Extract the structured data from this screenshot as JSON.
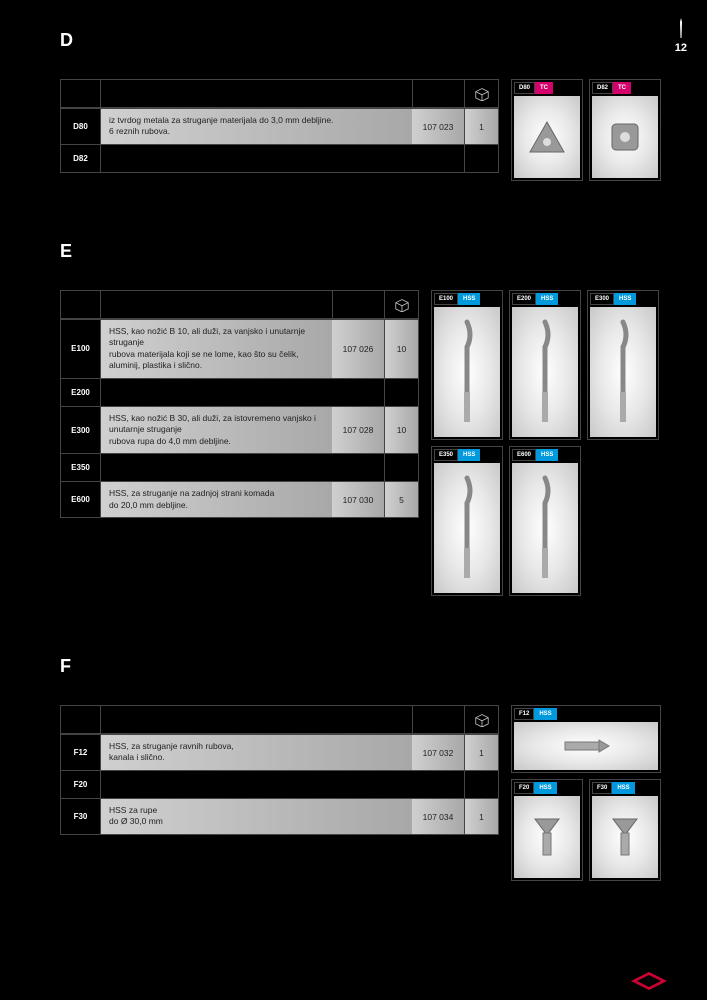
{
  "page_number": "12",
  "sections": [
    {
      "id": "D",
      "title": "D",
      "table": {
        "rows": [
          {
            "model": "D80",
            "desc": "iz tvrdog metala za struganje materijala do 3,0 mm debljine.\n6 reznih rubova.",
            "code": "107 023",
            "pack": "1",
            "style": "light"
          },
          {
            "model": "D82",
            "desc": "",
            "code": "",
            "pack": "",
            "style": "dark"
          }
        ]
      },
      "images": [
        {
          "model": "D80",
          "material": "TC",
          "mat_class": "tag-tc",
          "shape": "triangle"
        },
        {
          "model": "D82",
          "material": "TC",
          "mat_class": "tag-tc",
          "shape": "square"
        }
      ],
      "img_height": "normal"
    },
    {
      "id": "E",
      "title": "E",
      "table": {
        "rows": [
          {
            "model": "E100",
            "desc": "HSS, kao nožić B 10, ali duži, za vanjsko i unutarnje struganje\nrubova materijala koji se ne lome, kao što su čelik, aluminij, plastika i slično.",
            "code": "107 026",
            "pack": "10",
            "style": "light"
          },
          {
            "model": "E200",
            "desc": "",
            "code": "",
            "pack": "",
            "style": "dark"
          },
          {
            "model": "E300",
            "desc": "HSS, kao nožić B 30, ali duži, za istovremeno vanjsko i unutarnje struganje\nrubova rupa do 4,0 mm debljine.",
            "code": "107 028",
            "pack": "10",
            "style": "light"
          },
          {
            "model": "E350",
            "desc": "",
            "code": "",
            "pack": "",
            "style": "dark"
          },
          {
            "model": "E600",
            "desc": "HSS, za struganje na zadnjoj strani komada\ndo 20,0 mm debljine.",
            "code": "107 030",
            "pack": "5",
            "style": "light"
          }
        ]
      },
      "images": [
        {
          "model": "E100",
          "material": "HSS",
          "mat_class": "tag-hss",
          "shape": "blade"
        },
        {
          "model": "E200",
          "material": "HSS",
          "mat_class": "tag-hss",
          "shape": "blade"
        },
        {
          "model": "E300",
          "material": "HSS",
          "mat_class": "tag-hss",
          "shape": "blade"
        },
        {
          "model": "E350",
          "material": "HSS",
          "mat_class": "tag-hss",
          "shape": "blade"
        },
        {
          "model": "E600",
          "material": "HSS",
          "mat_class": "tag-hss",
          "shape": "blade"
        }
      ],
      "img_height": "tall",
      "img_width_class": ""
    },
    {
      "id": "F",
      "title": "F",
      "table": {
        "rows": [
          {
            "model": "F12",
            "desc": "HSS, za struganje ravnih rubova,\nkanala i slično.",
            "code": "107 032",
            "pack": "1",
            "style": "light"
          },
          {
            "model": "F20",
            "desc": "",
            "code": "",
            "pack": "",
            "style": "dark"
          },
          {
            "model": "F30",
            "desc": "HSS za rupe\ndo Ø 30,0 mm",
            "code": "107 034",
            "pack": "1",
            "style": "light"
          }
        ]
      },
      "images": [
        {
          "model": "F12",
          "material": "HSS",
          "mat_class": "tag-hss",
          "shape": "cylinder"
        },
        {
          "model": "F20",
          "material": "HSS",
          "mat_class": "tag-hss",
          "shape": "countersink"
        },
        {
          "model": "F30",
          "material": "HSS",
          "mat_class": "tag-hss",
          "shape": "countersink"
        }
      ],
      "img_height": "short_then_normal"
    }
  ],
  "colors": {
    "bg": "#000000",
    "border": "#444444",
    "tc": "#d6006c",
    "hss": "#0099dd",
    "row_light_start": "#d0d0d0",
    "row_light_end": "#a8a8a8"
  }
}
